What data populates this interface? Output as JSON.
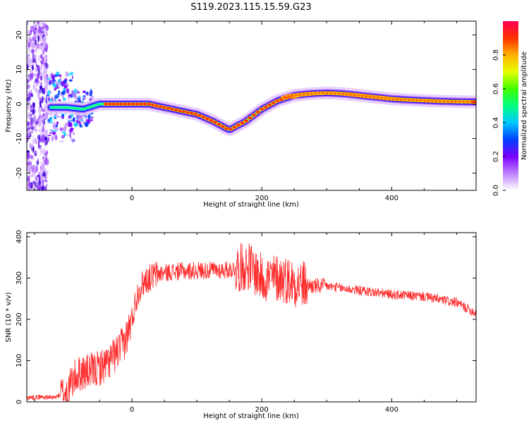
{
  "title": "S119.2023.115.15.59.G23",
  "colors": {
    "snr_line": "#ff2a2a",
    "colorbar": [
      "#ffffff",
      "#c080ff",
      "#7a00ff",
      "#0040ff",
      "#00c8ff",
      "#00ff80",
      "#40ff00",
      "#e6ff00",
      "#ffb000",
      "#ff3000",
      "#ff0050"
    ]
  },
  "chart_data": [
    {
      "type": "heatmap",
      "xlabel": "Height of straight line (km)",
      "ylabel": "Frequency (Hz)",
      "xlim": [
        -162,
        530
      ],
      "ylim": [
        -25,
        24
      ],
      "x_ticks": [
        0,
        200,
        400
      ],
      "y_ticks": [
        -20,
        -10,
        0,
        10,
        20
      ],
      "colorbar": {
        "label": "Normalized spectral amplitude",
        "range": [
          0,
          1
        ],
        "ticks": [
          "0.0",
          "0.2",
          "0.4",
          "0.6",
          "0.8"
        ],
        "tick_values": [
          0,
          0.2,
          0.4,
          0.6,
          0.8
        ]
      },
      "ridge": {
        "x": [
          -100,
          -75,
          -50,
          -25,
          0,
          25,
          50,
          75,
          100,
          125,
          150,
          175,
          200,
          225,
          250,
          275,
          300,
          325,
          350,
          375,
          400,
          425,
          450,
          475,
          500,
          530
        ],
        "y": [
          -1,
          -1.5,
          0,
          0,
          0,
          0,
          -1,
          -2,
          -3,
          -5,
          -7.5,
          -5,
          -1.5,
          1,
          2.5,
          3,
          3.2,
          3,
          2.5,
          2,
          1.5,
          1.2,
          1,
          0.8,
          0.7,
          0.6
        ]
      }
    },
    {
      "type": "line",
      "xlabel": "Height of straight line (km)",
      "ylabel": "SNR (10 * v/v)",
      "xlim": [
        -162,
        530
      ],
      "ylim": [
        0,
        410
      ],
      "x_ticks": [
        0,
        200,
        400
      ],
      "y_ticks": [
        0,
        100,
        200,
        300,
        400
      ],
      "series": [
        {
          "x": [
            -162,
            -140,
            -120,
            -100,
            -90,
            -80,
            -60,
            -40,
            -20,
            -10,
            0,
            5,
            10,
            20,
            40,
            60,
            100,
            150,
            180,
            200,
            230,
            260,
            280,
            300,
            350,
            400,
            450,
            500,
            530
          ],
          "y": [
            10,
            12,
            10,
            25,
            55,
            70,
            75,
            90,
            125,
            150,
            200,
            240,
            270,
            295,
            310,
            315,
            318,
            320,
            330,
            300,
            300,
            285,
            280,
            280,
            270,
            260,
            255,
            240,
            215
          ]
        }
      ]
    }
  ]
}
